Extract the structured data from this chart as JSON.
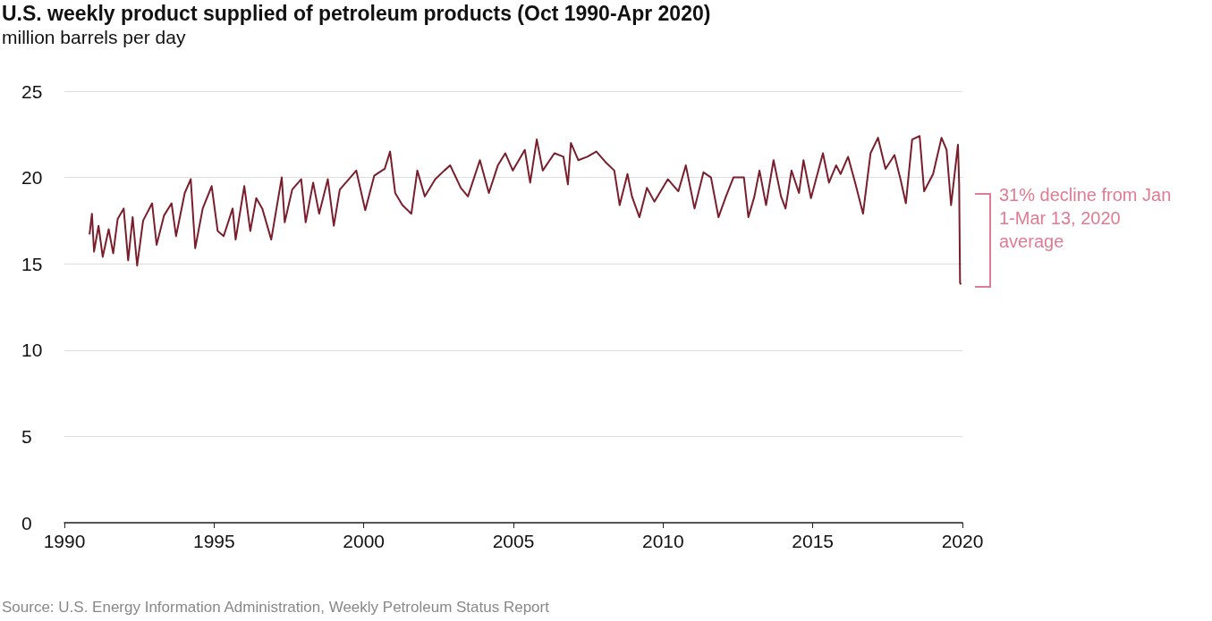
{
  "chart_data": {
    "type": "line",
    "title": "U.S. weekly product supplied of petroleum products (Oct 1990-Apr 2020)",
    "subtitle": "million barrels per day",
    "x": [
      1990.84,
      1990.92,
      1990.99,
      1991.14,
      1991.28,
      1991.48,
      1991.63,
      1991.78,
      1991.98,
      1992.13,
      1992.28,
      1992.43,
      1992.63,
      1992.93,
      1993.08,
      1993.33,
      1993.58,
      1993.73,
      1994.02,
      1994.22,
      1994.37,
      1994.62,
      1994.92,
      1995.12,
      1995.32,
      1995.62,
      1995.72,
      1996.01,
      1996.21,
      1996.41,
      1996.61,
      1996.91,
      1997.26,
      1997.36,
      1997.61,
      1997.91,
      1998.06,
      1998.31,
      1998.51,
      1998.8,
      1999.0,
      1999.2,
      1999.5,
      1999.75,
      2000.05,
      2000.35,
      2000.7,
      2000.88,
      2001.05,
      2001.29,
      2001.59,
      2001.79,
      2002.04,
      2002.39,
      2002.69,
      2002.89,
      2003.24,
      2003.48,
      2003.88,
      2004.18,
      2004.48,
      2004.73,
      2004.98,
      2005.38,
      2005.56,
      2005.78,
      2005.98,
      2006.37,
      2006.67,
      2006.82,
      2006.92,
      2007.17,
      2007.47,
      2007.77,
      2008.07,
      2008.37,
      2008.55,
      2008.81,
      2008.96,
      2009.21,
      2009.46,
      2009.71,
      2010.16,
      2010.51,
      2010.76,
      2011.05,
      2011.35,
      2011.6,
      2011.85,
      2012.1,
      2012.35,
      2012.7,
      2012.85,
      2013.05,
      2013.22,
      2013.44,
      2013.69,
      2013.94,
      2014.09,
      2014.29,
      2014.54,
      2014.69,
      2014.94,
      2015.34,
      2015.54,
      2015.78,
      2015.93,
      2016.18,
      2016.43,
      2016.68,
      2016.93,
      2017.18,
      2017.43,
      2017.73,
      2017.93,
      2018.11,
      2018.32,
      2018.57,
      2018.72,
      2019.02,
      2019.3,
      2019.47,
      2019.62,
      2019.85,
      2019.89,
      2019.92,
      2019.95
    ],
    "values": [
      16.7,
      17.9,
      15.7,
      17.2,
      15.4,
      17.0,
      15.6,
      17.6,
      18.2,
      15.2,
      17.7,
      14.9,
      17.5,
      18.5,
      16.1,
      17.8,
      18.5,
      16.6,
      19.1,
      19.9,
      15.9,
      18.2,
      19.5,
      16.9,
      16.6,
      18.2,
      16.4,
      19.5,
      16.9,
      18.8,
      18.2,
      16.4,
      20.0,
      17.4,
      19.3,
      19.9,
      17.4,
      19.7,
      17.9,
      19.9,
      17.2,
      19.3,
      19.9,
      20.4,
      18.1,
      20.1,
      20.5,
      21.5,
      19.1,
      18.4,
      17.9,
      20.4,
      18.9,
      19.9,
      20.4,
      20.7,
      19.4,
      18.9,
      21.0,
      19.1,
      20.7,
      21.4,
      20.4,
      21.6,
      19.7,
      22.2,
      20.4,
      21.4,
      21.2,
      19.6,
      22.0,
      21.0,
      21.2,
      21.5,
      20.9,
      20.4,
      18.4,
      20.2,
      18.9,
      17.7,
      19.4,
      18.6,
      19.9,
      19.2,
      20.7,
      18.2,
      20.3,
      20.0,
      17.7,
      18.9,
      20.0,
      20.0,
      17.7,
      18.9,
      20.4,
      18.4,
      21.0,
      18.9,
      18.2,
      20.4,
      19.1,
      21.0,
      18.8,
      21.4,
      19.7,
      20.7,
      20.2,
      21.2,
      19.6,
      17.9,
      21.4,
      22.3,
      20.5,
      21.3,
      19.9,
      18.5,
      22.2,
      22.4,
      19.2,
      20.2,
      22.3,
      21.6,
      18.4,
      21.9,
      19.6,
      13.9,
      13.8
    ],
    "color": "#7a1e2c",
    "xlim": [
      1990,
      2020
    ],
    "xticks": [
      1990,
      1995,
      2000,
      2005,
      2010,
      2015,
      2020
    ],
    "ylim": [
      0,
      25
    ],
    "yticks": [
      0,
      5,
      10,
      15,
      20,
      25
    ],
    "grid": "y",
    "marker": "none",
    "line_style": "solid",
    "annotations": [
      "31% decline from Jan 1-Mar 13, 2020 average",
      "Source: U.S. Energy Information Administration, Weekly Petroleum Status Report"
    ]
  }
}
